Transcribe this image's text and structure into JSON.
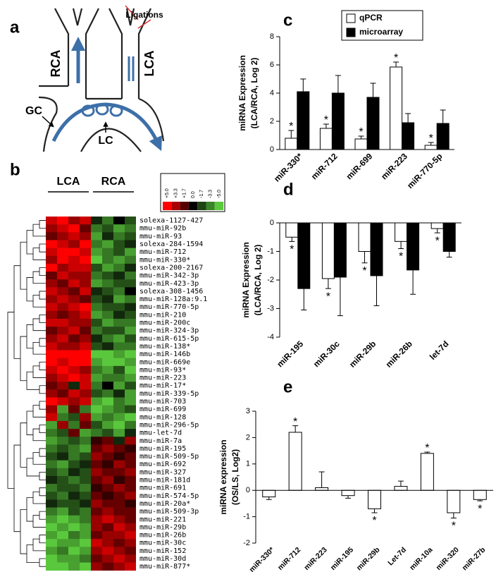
{
  "diagram": {
    "label": "a",
    "ligations": "Ligations",
    "rca": "RCA",
    "lca": "LCA",
    "gc": "GC",
    "lc": "LC"
  },
  "chart_data": [
    {
      "type": "heatmap",
      "label": "b",
      "column_groups": [
        "LCA",
        "RCA"
      ],
      "rows": [
        "solexa-1127-427",
        "mmu-miR-92b",
        "mmu-miR-93",
        "solexa-284-1594",
        "mmu-miR-712",
        "mmu-miR-330*",
        "solexa-200-2167",
        "mmu-miR-342-3p",
        "mmu-miR-423-3p",
        "solexa-308-1456",
        "mmu-miR-128a:9.1",
        "mmu-miR-770-5p",
        "mmu-miR-210",
        "mmu-miR-200c",
        "mmu-miR-324-3p",
        "mmu-miR-615-5p",
        "mmu-miR-138*",
        "mmu-miR-146b",
        "mmu-miR-669e",
        "mmu-miR-93*",
        "mmu-miR-223",
        "mmu-miR-17*",
        "mmu-miR-339-5p",
        "mmu-miR-703",
        "mmu-miR-699",
        "mmu-miR-128",
        "mmu-miR-296-5p",
        "mmu-let-7d",
        "mmu-miR-7a",
        "mmu-miR-195",
        "mmu-miR-509-5p",
        "mmu-miR-692",
        "mmu-miR-327",
        "mmu-miR-181d",
        "mmu-miR-691",
        "mmu-miR-574-5p",
        "mmu-miR-20a*",
        "mmu-miR-509-3p",
        "mmu-miR-221",
        "mmu-miR-29b",
        "mmu-miR-26b",
        "mmu-miR-30c",
        "mmu-miR-152",
        "mmu-miR-30d",
        "mmu-miR-877*"
      ],
      "values": [
        [
          4,
          5,
          3,
          4,
          -1,
          -3,
          0,
          -2
        ],
        [
          3,
          4,
          5,
          2,
          -3,
          -2,
          -4,
          -3
        ],
        [
          2,
          3,
          4,
          3,
          -4,
          -1,
          -3,
          -2
        ],
        [
          5,
          4,
          3,
          5,
          -3,
          -4,
          -2,
          -1
        ],
        [
          4,
          5,
          5,
          4,
          -4,
          -3,
          -2,
          -4
        ],
        [
          3,
          5,
          4,
          5,
          -5,
          -3,
          -4,
          -3
        ],
        [
          5,
          3,
          4,
          4,
          -2,
          -4,
          -3,
          -1
        ],
        [
          2,
          4,
          3,
          3,
          -3,
          -2,
          -1,
          -3
        ],
        [
          3,
          2,
          4,
          3,
          -4,
          -3,
          -2,
          -2
        ],
        [
          4,
          3,
          2,
          4,
          -1,
          -2,
          -3,
          0
        ],
        [
          3,
          4,
          3,
          2,
          -2,
          -1,
          -4,
          -3
        ],
        [
          4,
          3,
          4,
          5,
          -3,
          -2,
          -2,
          -1
        ],
        [
          3,
          2,
          3,
          4,
          -4,
          -3,
          -1,
          -2
        ],
        [
          4,
          4,
          3,
          3,
          -2,
          -4,
          -3,
          -3
        ],
        [
          2,
          3,
          4,
          2,
          -3,
          -2,
          -2,
          -4
        ],
        [
          3,
          4,
          2,
          3,
          -1,
          -3,
          -4,
          -2
        ],
        [
          4,
          3,
          3,
          4,
          -2,
          -1,
          -3,
          -3
        ],
        [
          5,
          5,
          5,
          5,
          -5,
          -5,
          -4,
          -5
        ],
        [
          5,
          4,
          5,
          5,
          -4,
          -5,
          -5,
          -4
        ],
        [
          4,
          5,
          4,
          3,
          -3,
          -4,
          -2,
          -5
        ],
        [
          3,
          4,
          5,
          4,
          -4,
          -3,
          -3,
          -4
        ],
        [
          2,
          3,
          -1,
          4,
          -3,
          0,
          -4,
          -2
        ],
        [
          3,
          2,
          4,
          3,
          -2,
          -3,
          -1,
          -4
        ],
        [
          5,
          4,
          3,
          4,
          -4,
          -5,
          -3,
          -4
        ],
        [
          3,
          -4,
          2,
          -3,
          -5,
          -4,
          -3,
          -2
        ],
        [
          4,
          -3,
          -2,
          3,
          -4,
          -3,
          -4,
          -5
        ],
        [
          -4,
          3,
          -3,
          2,
          -2,
          -4,
          -5,
          -3
        ],
        [
          -3,
          -2,
          2,
          -4,
          -3,
          -2,
          -4,
          -1
        ],
        [
          -4,
          -3,
          -2,
          -3,
          1,
          2,
          -1,
          3
        ],
        [
          -3,
          -2,
          -3,
          -4,
          2,
          3,
          2,
          1
        ],
        [
          -2,
          -1,
          -3,
          -2,
          3,
          2,
          1,
          2
        ],
        [
          -3,
          -4,
          -2,
          -1,
          2,
          1,
          3,
          2
        ],
        [
          -2,
          -3,
          -1,
          -2,
          3,
          2,
          2,
          3
        ],
        [
          -1,
          -2,
          -3,
          -2,
          2,
          3,
          1,
          2
        ],
        [
          -3,
          -2,
          -2,
          -3,
          1,
          2,
          3,
          2
        ],
        [
          -2,
          -3,
          -1,
          -2,
          2,
          1,
          2,
          3
        ],
        [
          -1,
          -2,
          -2,
          -1,
          3,
          2,
          2,
          1
        ],
        [
          -3,
          -4,
          -2,
          -3,
          2,
          3,
          2,
          2
        ],
        [
          -4,
          -5,
          -4,
          -3,
          3,
          4,
          3,
          2
        ],
        [
          -5,
          -4,
          -5,
          -4,
          3,
          2,
          4,
          3
        ],
        [
          -4,
          -5,
          -3,
          -4,
          2,
          3,
          3,
          4
        ],
        [
          -5,
          -4,
          -4,
          -5,
          4,
          3,
          2,
          3
        ],
        [
          -4,
          -3,
          -5,
          -4,
          3,
          4,
          3,
          2
        ],
        [
          -5,
          -4,
          -4,
          -3,
          2,
          3,
          4,
          3
        ],
        [
          -5,
          -5,
          -4,
          -5,
          3,
          2,
          3,
          4
        ]
      ],
      "colorbar": {
        "ticks": [
          {
            "value": 5,
            "label": "+5.0"
          },
          {
            "value": 3.3,
            "label": "+3.3"
          },
          {
            "value": 1.7,
            "label": "+1.7"
          },
          {
            "value": 0,
            "label": "0.0"
          },
          -1.7,
          -3.3,
          {
            "value": -5,
            "label": "-5.0"
          }
        ]
      }
    },
    {
      "type": "bar",
      "label": "c",
      "categories": [
        "miR-330*",
        "miR-712",
        "miR-699",
        "miR-223",
        "miR-770-5p"
      ],
      "series": [
        {
          "name": "qPCR",
          "color": "#ffffff",
          "values": [
            0.8,
            1.5,
            0.75,
            5.85,
            0.3
          ],
          "errors": [
            0.55,
            0.3,
            0.2,
            0.35,
            0.2
          ],
          "significance": [
            "*",
            "*",
            "*",
            "*",
            "*"
          ]
        },
        {
          "name": "microarray",
          "color": "#000000",
          "values": [
            4.1,
            4.0,
            3.7,
            1.9,
            1.85
          ],
          "errors": [
            0.9,
            1.25,
            1.0,
            0.65,
            0.95
          ]
        }
      ],
      "ylim": [
        0,
        8
      ],
      "yticks": [
        0,
        2,
        4,
        6,
        8
      ],
      "ylabel": [
        "miRNA Expression",
        "(LCA/RCA, Log 2)"
      ],
      "legend": "top-right"
    },
    {
      "type": "bar",
      "label": "d",
      "categories": [
        "miR-195",
        "miR-30c",
        "miR-29b",
        "miR-26b",
        "let-7d"
      ],
      "series": [
        {
          "color": "#ffffff",
          "values": [
            -0.5,
            -1.95,
            -1.0,
            -0.65,
            -0.2
          ],
          "errors": [
            0.15,
            0.35,
            0.4,
            0.25,
            0.15
          ],
          "significance": [
            "*",
            "*",
            "*",
            "*",
            "*"
          ]
        },
        {
          "color": "#000000",
          "values": [
            -2.3,
            -1.9,
            -1.85,
            -1.65,
            -1.0
          ],
          "errors": [
            0.75,
            1.35,
            1.05,
            0.85,
            0.2
          ]
        }
      ],
      "ylim": [
        -4,
        0
      ],
      "yticks": [
        0,
        -1,
        -2,
        -3,
        -4
      ],
      "ylabel": [
        "miRNA Expression",
        "(LCA/RCA, Log 2)"
      ]
    },
    {
      "type": "bar",
      "label": "e",
      "categories": [
        "miR-330*",
        "miR-712",
        "miR-223",
        "miR-195",
        "miR-29b",
        "Let-7d",
        "miR-10a",
        "miR-320",
        "miR-27b"
      ],
      "series": [
        {
          "color": "#ffffff",
          "values": [
            -0.25,
            2.2,
            0.1,
            -0.2,
            -0.7,
            0.15,
            1.4,
            -0.85,
            -0.35
          ],
          "errors": [
            0.1,
            0.25,
            0.6,
            0.1,
            0.15,
            0.2,
            0.05,
            0.2,
            0.05
          ],
          "significance": [
            null,
            "*",
            null,
            null,
            "*",
            null,
            "*",
            "*",
            "*"
          ]
        }
      ],
      "ylim": [
        -2,
        3
      ],
      "yticks": [
        -2,
        -1,
        0,
        1,
        2,
        3
      ],
      "ylabel": [
        "miRNA expression",
        "(OS/LS, Log2)"
      ]
    }
  ]
}
